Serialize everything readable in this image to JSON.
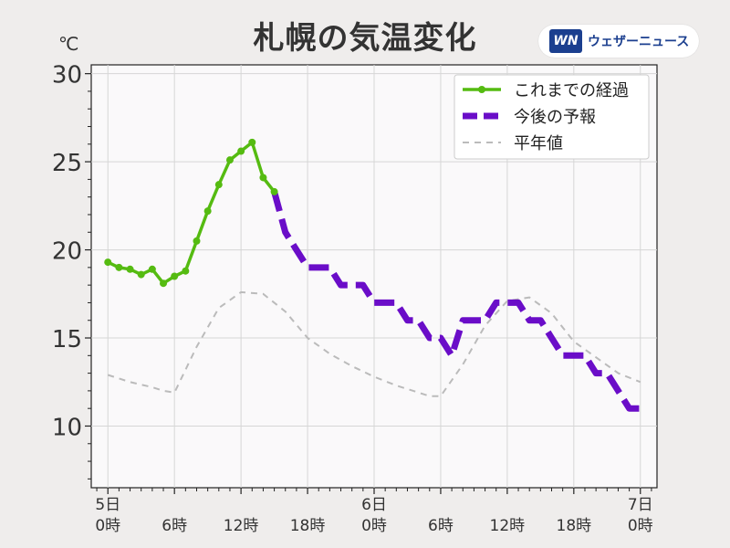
{
  "header": {
    "title": "札幌の気温変化",
    "unit": "℃",
    "brand_logo": "WN",
    "brand_text": "ウェザーニュース"
  },
  "chart_data": {
    "type": "line",
    "title": "札幌の気温変化",
    "ylabel": "℃",
    "xlabel": "",
    "ylim": [
      6.5,
      30.5
    ],
    "xlim_hours": [
      -1.5,
      49.5
    ],
    "y_ticks": [
      10,
      15,
      20,
      25,
      30
    ],
    "x_ticks": [
      {
        "hour": 0,
        "line1": "5日",
        "line2": "0時"
      },
      {
        "hour": 6,
        "line1": "",
        "line2": "6時"
      },
      {
        "hour": 12,
        "line1": "",
        "line2": "12時"
      },
      {
        "hour": 18,
        "line1": "",
        "line2": "18時"
      },
      {
        "hour": 24,
        "line1": "6日",
        "line2": "0時"
      },
      {
        "hour": 30,
        "line1": "",
        "line2": "6時"
      },
      {
        "hour": 36,
        "line1": "",
        "line2": "12時"
      },
      {
        "hour": 42,
        "line1": "",
        "line2": "18時"
      },
      {
        "hour": 48,
        "line1": "7日",
        "line2": "0時"
      }
    ],
    "grid": true,
    "legend_position": "top-right",
    "series": [
      {
        "name": "これまでの経過",
        "color": "#55bb11",
        "style": "solid-markers",
        "x": [
          0,
          1,
          2,
          3,
          4,
          5,
          6,
          7,
          8,
          9,
          10,
          11,
          12,
          13,
          14,
          15
        ],
        "y": [
          19.3,
          19.0,
          18.9,
          18.6,
          18.9,
          18.1,
          18.5,
          18.8,
          20.5,
          22.2,
          23.7,
          25.1,
          25.6,
          26.1,
          24.1,
          23.3
        ]
      },
      {
        "name": "今後の予報",
        "color": "#6a0dc8",
        "style": "thick-dashed-step",
        "x": [
          15,
          16,
          17,
          18,
          19,
          20,
          21,
          22,
          23,
          24,
          25,
          26,
          27,
          28,
          29,
          30,
          31,
          32,
          33,
          34,
          35,
          36,
          37,
          38,
          39,
          40,
          41,
          42,
          43,
          44,
          45,
          46,
          47,
          48
        ],
        "y": [
          23.3,
          21,
          20,
          19,
          19,
          19,
          18,
          18,
          18,
          17,
          17,
          17,
          16,
          16,
          15,
          15,
          14,
          16,
          16,
          16,
          17,
          17,
          17,
          16,
          16,
          15,
          14,
          14,
          14,
          13,
          13,
          12,
          11,
          11
        ]
      },
      {
        "name": "平年値",
        "color": "#bbbbbb",
        "style": "thin-dashed",
        "x": [
          0,
          2,
          4,
          5,
          6,
          8,
          10,
          12,
          14,
          16,
          18,
          20,
          22,
          24,
          26,
          28,
          29,
          30,
          32,
          34,
          36,
          38,
          40,
          42,
          44,
          46,
          48
        ],
        "y": [
          12.9,
          12.5,
          12.2,
          12.0,
          11.9,
          14.5,
          16.7,
          17.6,
          17.5,
          16.5,
          15,
          14.1,
          13.4,
          12.8,
          12.3,
          11.9,
          11.7,
          11.7,
          13.5,
          15.7,
          17.1,
          17.3,
          16.4,
          14.8,
          13.9,
          13.0,
          12.5
        ]
      }
    ]
  }
}
